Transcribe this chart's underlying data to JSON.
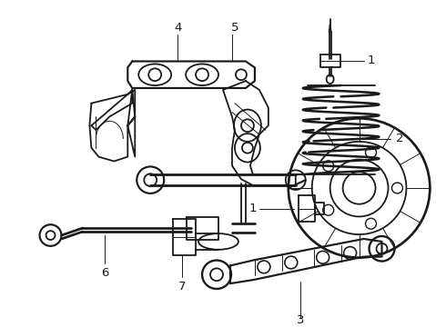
{
  "background": "#ffffff",
  "line_color": "#1a1a1a",
  "lw_main": 1.3,
  "lw_thin": 0.7,
  "lw_thick": 2.0,
  "font_size": 9.5,
  "fig_w": 4.9,
  "fig_h": 3.6,
  "dpi": 100
}
